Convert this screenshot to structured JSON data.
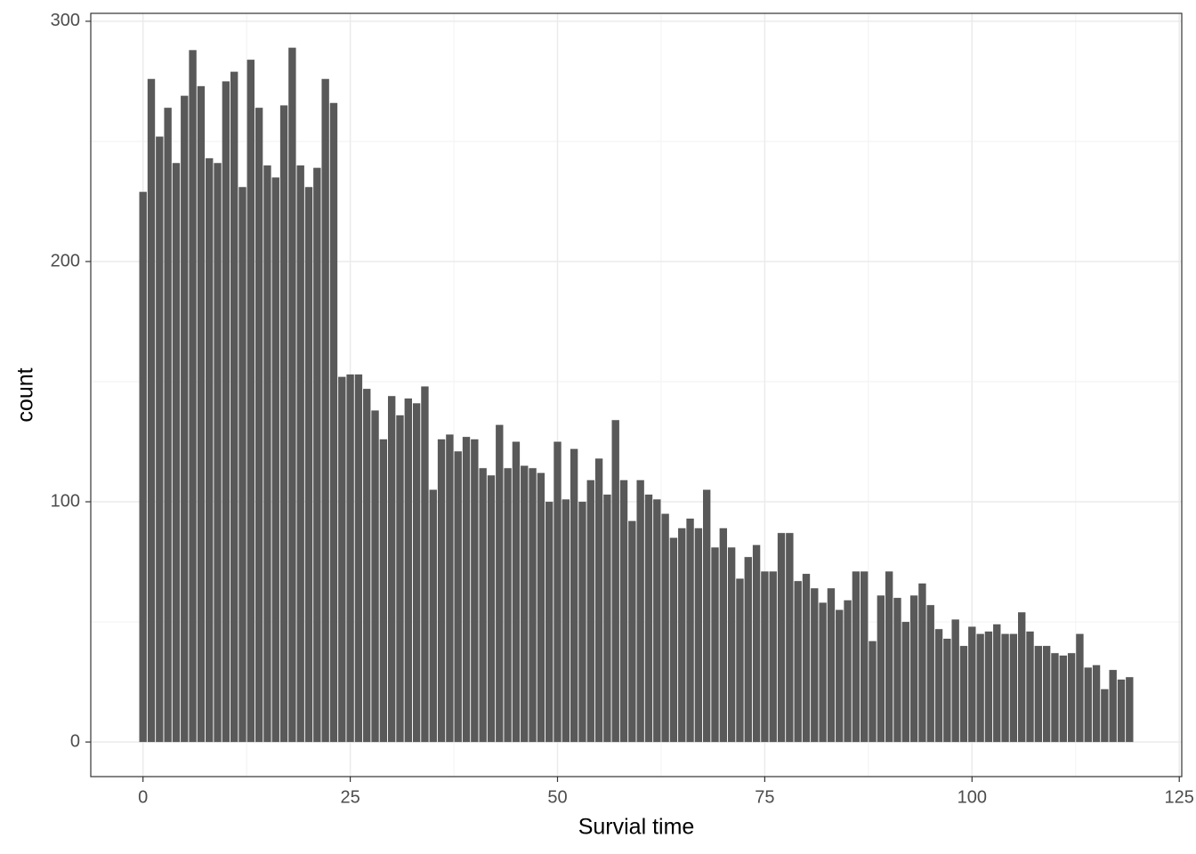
{
  "chart_data": {
    "type": "bar",
    "x_label": "Survial time",
    "y_label": "count",
    "x": [
      0,
      1,
      2,
      3,
      4,
      5,
      6,
      7,
      8,
      9,
      10,
      11,
      12,
      13,
      14,
      15,
      16,
      17,
      18,
      19,
      20,
      21,
      22,
      23,
      24,
      25,
      26,
      27,
      28,
      29,
      30,
      31,
      32,
      33,
      34,
      35,
      36,
      37,
      38,
      39,
      40,
      41,
      42,
      43,
      44,
      45,
      46,
      47,
      48,
      49,
      50,
      51,
      52,
      53,
      54,
      55,
      56,
      57,
      58,
      59,
      60,
      61,
      62,
      63,
      64,
      65,
      66,
      67,
      68,
      69,
      70,
      71,
      72,
      73,
      74,
      75,
      76,
      77,
      78,
      79,
      80,
      81,
      82,
      83,
      84,
      85,
      86,
      87,
      88,
      89,
      90,
      91,
      92,
      93,
      94,
      95,
      96,
      97,
      98,
      99,
      100,
      101,
      102,
      103,
      104,
      105,
      106,
      107,
      108,
      109,
      110,
      111,
      112,
      113,
      114,
      115,
      116,
      117,
      118,
      119
    ],
    "values": [
      229,
      276,
      252,
      264,
      241,
      269,
      288,
      273,
      243,
      241,
      275,
      279,
      231,
      284,
      264,
      240,
      235,
      265,
      289,
      240,
      231,
      239,
      276,
      266,
      152,
      153,
      153,
      147,
      138,
      126,
      144,
      136,
      143,
      141,
      148,
      105,
      126,
      128,
      121,
      127,
      126,
      114,
      111,
      132,
      114,
      125,
      115,
      114,
      112,
      100,
      125,
      101,
      122,
      100,
      109,
      118,
      103,
      134,
      109,
      92,
      109,
      103,
      101,
      95,
      85,
      89,
      93,
      89,
      105,
      81,
      89,
      81,
      68,
      77,
      82,
      71,
      71,
      87,
      87,
      67,
      70,
      64,
      58,
      64,
      55,
      59,
      71,
      71,
      42,
      61,
      71,
      60,
      50,
      61,
      66,
      57,
      47,
      43,
      51,
      40,
      48,
      45,
      46,
      49,
      45,
      45,
      54,
      46,
      40,
      40,
      37,
      36,
      37,
      45,
      31,
      32,
      22,
      30,
      26,
      27
    ],
    "color": "#595959",
    "xlim": [
      -6.3,
      125.3
    ],
    "xticks": [
      0,
      25,
      50,
      75,
      100,
      125
    ],
    "ylim": [
      -14.4,
      303.3
    ],
    "yticks": [
      0,
      100,
      200,
      300
    ],
    "grid": true,
    "minor_grid": true
  }
}
